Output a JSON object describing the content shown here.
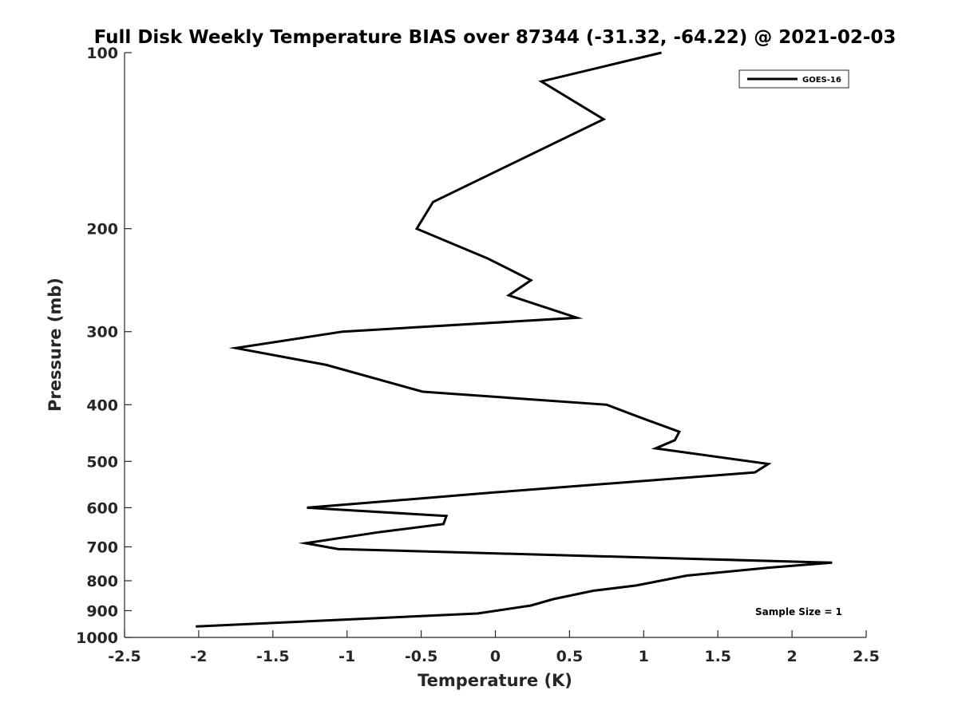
{
  "chart_data": {
    "type": "line",
    "title": "Full Disk Weekly Temperature BIAS over 87344 (-31.32, -64.22) @ 2021-02-03",
    "xlabel": "Temperature (K)",
    "ylabel": "Pressure (mb)",
    "xlim": [
      -2.5,
      2.5
    ],
    "ylim": [
      100,
      1000
    ],
    "yscale": "log",
    "y_reversed": true,
    "x_ticks": [
      -2.5,
      -2,
      -1.5,
      -1,
      -0.5,
      0,
      0.5,
      1,
      1.5,
      2,
      2.5
    ],
    "x_tick_labels": [
      "-2.5",
      "-2",
      "-1.5",
      "-1",
      "-0.5",
      "0",
      "0.5",
      "1",
      "1.5",
      "2",
      "2.5"
    ],
    "y_ticks": [
      100,
      200,
      300,
      400,
      500,
      600,
      700,
      800,
      900,
      1000
    ],
    "y_tick_labels": [
      "100",
      "200",
      "300",
      "400",
      "500",
      "600",
      "700",
      "800",
      "900",
      "1000"
    ],
    "grid": false,
    "legend": {
      "position": "top-right",
      "entries": [
        "GOES-16"
      ]
    },
    "annotation": "Sample Size = 1",
    "series": [
      {
        "name": "GOES-16",
        "color": "#000000",
        "x": [
          1.12,
          0.31,
          0.73,
          -0.42,
          -0.53,
          -0.05,
          0.24,
          0.09,
          0.55,
          -1.03,
          -1.75,
          -1.14,
          -0.49,
          0.75,
          0.97,
          1.24,
          1.21,
          1.08,
          1.84,
          1.75,
          -0.01,
          -1.27,
          -0.33,
          -0.35,
          -0.77,
          -1.28,
          -1.06,
          2.27,
          1.84,
          1.29,
          0.95,
          0.66,
          0.39,
          0.24,
          -0.12,
          -2.02
        ],
        "y": [
          100,
          112,
          130,
          180,
          200,
          225,
          245,
          260,
          284,
          300,
          320,
          342,
          380,
          400,
          420,
          445,
          460,
          475,
          505,
          522,
          565,
          600,
          620,
          640,
          660,
          690,
          706,
          745,
          760,
          784,
          815,
          832,
          860,
          882,
          910,
          958
        ]
      }
    ]
  }
}
